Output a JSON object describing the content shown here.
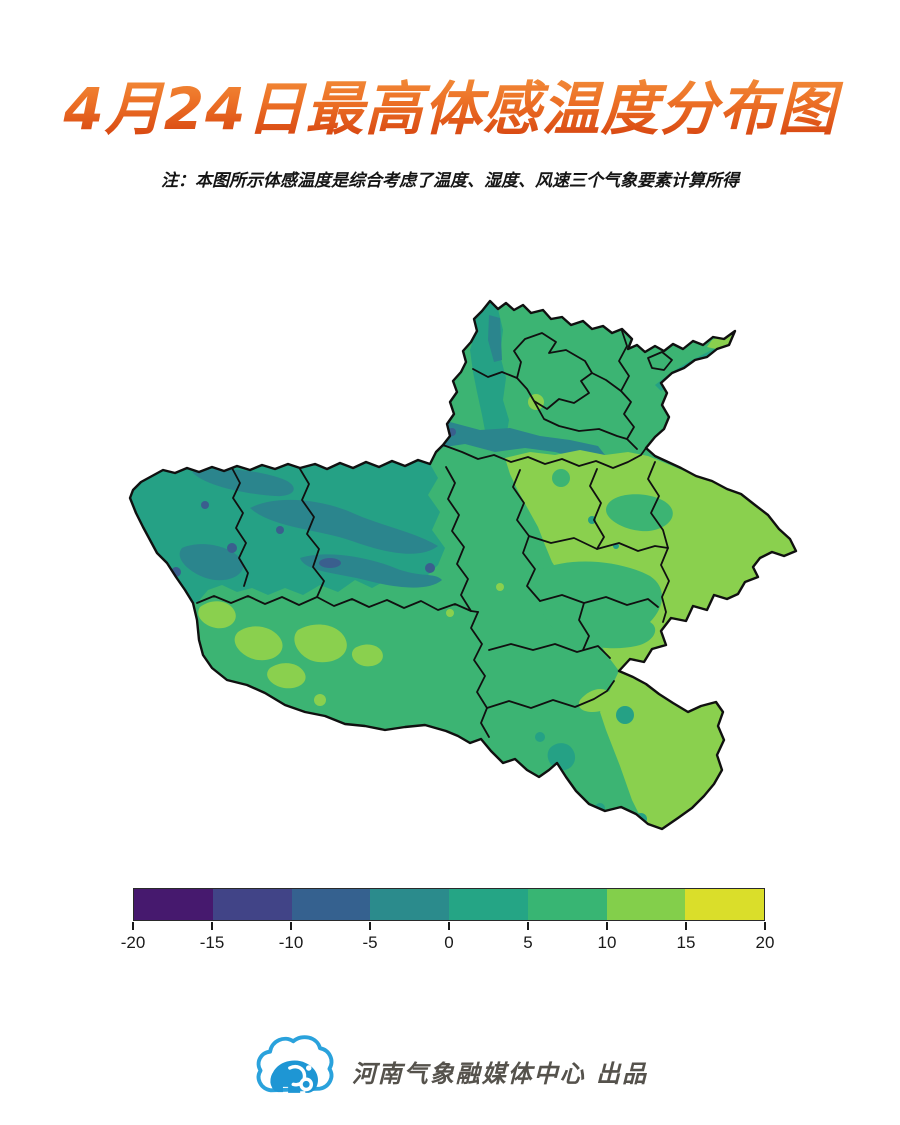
{
  "title": "4月24日最高体感温度分布图",
  "note": "注：本图所示体感温度是综合考虑了温度、湿度、风速三个气象要素计算所得",
  "theme": {
    "title_gradient": [
      "#f59a43",
      "#ec7026",
      "#d23c0c"
    ],
    "boundary_color": "#101010",
    "logo_blue": "#1e96d4"
  },
  "colorbar": {
    "min": -20,
    "max": 20,
    "step": 5,
    "tick_labels": [
      "-20",
      "-15",
      "-10",
      "-5",
      "0",
      "5",
      "10",
      "15",
      "20"
    ],
    "segment_colors": [
      "#46196e",
      "#414487",
      "#35618f",
      "#2b8b8c",
      "#25a585",
      "#38b573",
      "#83cf4b",
      "#dade2a"
    ]
  },
  "map": {
    "kind": "filled-contour temperature map of Henan province with prefecture boundaries",
    "dominant_level_color": "#3cb473",
    "west_mountain_level_color": "#25a185",
    "east_plain_level_color": "#8ad04e",
    "value_of_dominant_level": "5–10",
    "value_of_west_level": "0–5",
    "value_of_east_level": "10–15"
  },
  "footer": {
    "credit": "河南气象融媒体中心 出品"
  }
}
